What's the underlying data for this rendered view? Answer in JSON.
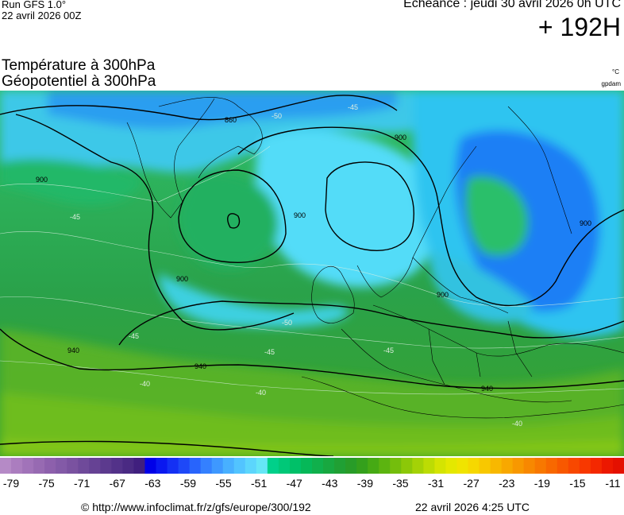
{
  "header": {
    "run": "Run GFS 1.0°",
    "run_date": "22 avril 2026 00Z",
    "valid": "Echéance : jeudi 30 avril 2026 0h UTC",
    "lead": "+ 192H"
  },
  "params": {
    "line1": "Température à 300hPa",
    "line2": "Géopotentiel à 300hPa",
    "unit_temp": "°C",
    "unit_geo": "gpdam"
  },
  "map_labels": {
    "geo": [
      "860",
      "900",
      "900",
      "900",
      "900",
      "900",
      "900",
      "940",
      "940",
      "940"
    ],
    "temp": [
      "-50",
      "-45",
      "-45",
      "-45",
      "-45",
      "-40",
      "-40",
      "-40",
      "-50",
      "-45"
    ]
  },
  "colorbar": {
    "colors": [
      "#b58ac6",
      "#ab7dbf",
      "#a173b9",
      "#976ab2",
      "#8d60ac",
      "#835aa7",
      "#7a52a0",
      "#6f4a9a",
      "#664294",
      "#5c3a8e",
      "#533289",
      "#4a2a83",
      "#401f7e",
      "#0000e8",
      "#0a18f0",
      "#1430f4",
      "#1e48f8",
      "#2864fc",
      "#3480ff",
      "#3e98ff",
      "#48b0ff",
      "#52c4ff",
      "#5cd6fc",
      "#66e6f6",
      "#00d08a",
      "#00c878",
      "#00c068",
      "#06b858",
      "#10b04c",
      "#18a840",
      "#20a034",
      "#289c28",
      "#34a01c",
      "#46aa14",
      "#5cb410",
      "#74be0c",
      "#8cc808",
      "#a4d206",
      "#bcdc04",
      "#d4e402",
      "#e4e800",
      "#f0e400",
      "#f6d800",
      "#f8c800",
      "#f8b800",
      "#f8a800",
      "#f89800",
      "#f88800",
      "#f87800",
      "#f86800",
      "#f85800",
      "#f84800",
      "#f83800",
      "#f42800",
      "#ec1800",
      "#e41000"
    ],
    "ticks": [
      "-79",
      "-75",
      "-71",
      "-67",
      "-63",
      "-59",
      "-55",
      "-51",
      "-47",
      "-43",
      "-39",
      "-35",
      "-31",
      "-27",
      "-23",
      "-19",
      "-15",
      "-11"
    ]
  },
  "footer": {
    "credit": "© http://www.infoclimat.fr/z/gfs/europe/300/192",
    "timestamp": "22 avril 2026  4:25 UTC"
  }
}
